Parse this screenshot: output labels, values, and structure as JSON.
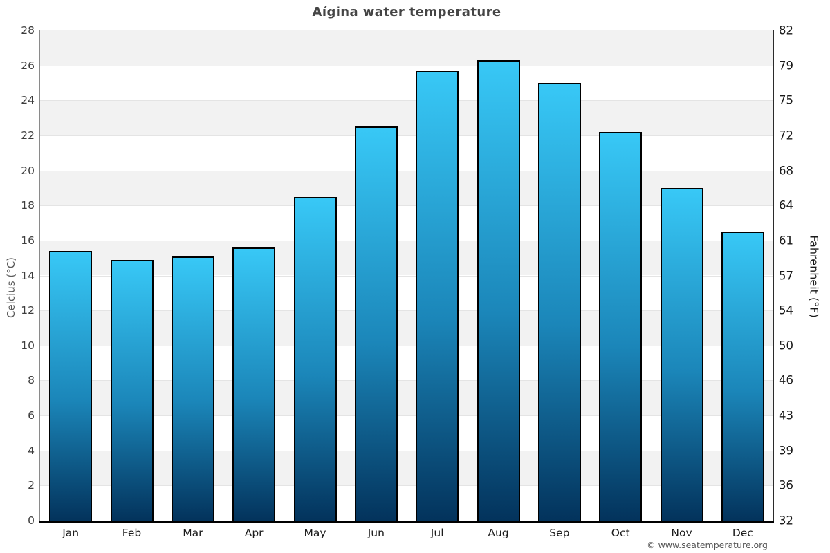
{
  "chart_data": {
    "type": "bar",
    "title": "Aígina water temperature",
    "xlabel": "",
    "ylabel": "Celcius (°C)",
    "ylabel_right": "Fahrenheit (°F)",
    "categories": [
      "Jan",
      "Feb",
      "Mar",
      "Apr",
      "May",
      "Jun",
      "Jul",
      "Aug",
      "Sep",
      "Oct",
      "Nov",
      "Dec"
    ],
    "values": [
      15.4,
      14.9,
      15.1,
      15.6,
      18.5,
      22.5,
      25.7,
      26.3,
      25.0,
      22.2,
      19.0,
      16.5
    ],
    "unit": "°C",
    "ylim": [
      0,
      28
    ],
    "ytick_step": 2,
    "yticks_left_top_to_bottom": [
      "28",
      "26",
      "24",
      "22",
      "20",
      "18",
      "16",
      "14",
      "12",
      "10",
      "8",
      "6",
      "4",
      "2",
      "0"
    ],
    "yticks_right_top_to_bottom": [
      "82",
      "79",
      "75",
      "72",
      "68",
      "64",
      "61",
      "57",
      "54",
      "50",
      "46",
      "43",
      "39",
      "36",
      "32"
    ],
    "grid": "alternating horizontal bands every 2°C, gray/white, gridline at each tick",
    "legend_position": "none"
  },
  "footer": {
    "credit": "© www.seatemperature.org"
  },
  "colors": {
    "bar_gradient_top": "#38c8f6",
    "bar_gradient_mid": "#1b86b9",
    "bar_gradient_bottom": "#03335c",
    "bar_border": "#000000",
    "band_gray": "#f2f2f2",
    "gridline": "#e4e4e4",
    "axis_left": "#8a8a8a",
    "axis_right": "#2b2b2b",
    "axis_bottom": "#000000",
    "title_text": "#454545",
    "footer_text": "#555555"
  }
}
